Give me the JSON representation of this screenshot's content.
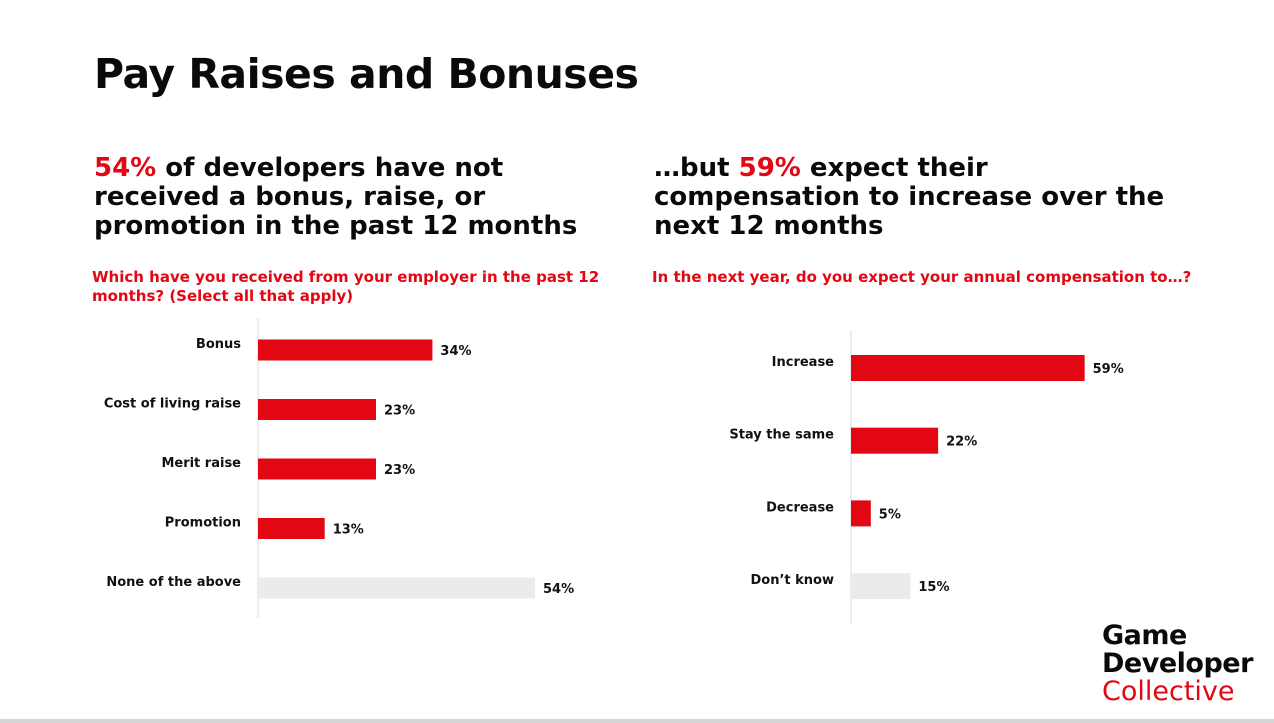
{
  "page": {
    "title": "Pay Raises and Bonuses",
    "left": {
      "headline_accent": "54%",
      "headline_rest": " of developers have not received a bonus, raise, or promotion in the past 12 months",
      "question": "Which have you received from your employer in the past 12 months? (Select all that apply)"
    },
    "right": {
      "headline_pre": "…but ",
      "headline_accent": "59%",
      "headline_rest": " expect their compensation to increase over the next 12 months",
      "question": "In the next year, do you expect your annual compensation to…?"
    },
    "logo": {
      "line1": "Game",
      "line2": "Developer",
      "line3": "Collective"
    }
  },
  "colors": {
    "accent": "#e30613",
    "bar_highlight": "#e30613",
    "bar_muted": "#ebebeb",
    "axis": "#d9d9d9"
  },
  "chart_data": [
    {
      "type": "bar",
      "orientation": "horizontal",
      "title": "Which have you received from your employer in the past 12 months? (Select all that apply)",
      "categories": [
        "Bonus",
        "Cost of living raise",
        "Merit raise",
        "Promotion",
        "None of the above"
      ],
      "values": [
        34,
        23,
        23,
        13,
        54
      ],
      "value_labels": [
        "34%",
        "23%",
        "23%",
        "13%",
        "54%"
      ],
      "muted": [
        false,
        false,
        false,
        false,
        true
      ],
      "unit": "%",
      "xlim": [
        0,
        100
      ],
      "grid": false
    },
    {
      "type": "bar",
      "orientation": "horizontal",
      "title": "In the next year, do you expect your annual compensation to…?",
      "categories": [
        "Increase",
        "Stay the same",
        "Decrease",
        "Don’t know"
      ],
      "values": [
        59,
        22,
        5,
        15
      ],
      "value_labels": [
        "59%",
        "22%",
        "5%",
        "15%"
      ],
      "muted": [
        false,
        false,
        false,
        true
      ],
      "unit": "%",
      "xlim": [
        0,
        100
      ],
      "grid": false
    }
  ]
}
